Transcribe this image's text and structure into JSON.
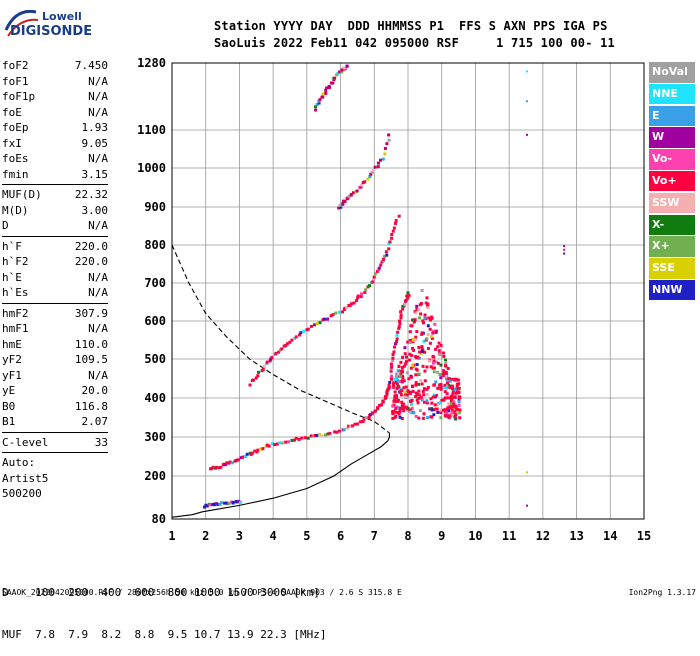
{
  "logo": {
    "top": "Lowell",
    "bottom": "DIGISONDE"
  },
  "header": {
    "line1": "Station YYYY DAY  DDD HHMMSS P1  FFS S AXN PPS IGA PS",
    "line2": "SaoLuis 2022 Feb11 042 095000 RSF     1 715 100 00- 11"
  },
  "params": {
    "group1": [
      {
        "name": "foF2",
        "value": "7.450"
      },
      {
        "name": "foF1",
        "value": "N/A"
      },
      {
        "name": "foF1p",
        "value": "N/A"
      },
      {
        "name": "foE",
        "value": "N/A"
      },
      {
        "name": "foEp",
        "value": "1.93"
      },
      {
        "name": "fxI",
        "value": "9.05"
      },
      {
        "name": "foEs",
        "value": "N/A"
      },
      {
        "name": "fmin",
        "value": "3.15"
      }
    ],
    "group2": [
      {
        "name": "MUF(D)",
        "value": "22.32"
      },
      {
        "name": "M(D)",
        "value": "3.00"
      },
      {
        "name": "D",
        "value": "N/A"
      }
    ],
    "group3": [
      {
        "name": "h`F",
        "value": "220.0"
      },
      {
        "name": "h`F2",
        "value": "220.0"
      },
      {
        "name": "h`E",
        "value": "N/A"
      },
      {
        "name": "h`Es",
        "value": "N/A"
      }
    ],
    "group4": [
      {
        "name": "hmF2",
        "value": "307.9"
      },
      {
        "name": "hmF1",
        "value": "N/A"
      },
      {
        "name": "hmE",
        "value": "110.0"
      },
      {
        "name": "yF2",
        "value": "109.5"
      },
      {
        "name": "yF1",
        "value": "N/A"
      },
      {
        "name": "yE",
        "value": "20.0"
      },
      {
        "name": "B0",
        "value": "116.8"
      },
      {
        "name": "B1",
        "value": "2.07"
      }
    ],
    "group5": [
      {
        "name": "C-level",
        "value": "33"
      }
    ],
    "auto": [
      "Auto:",
      "Artist5",
      "500200"
    ]
  },
  "legend": [
    {
      "label": "NoVal",
      "color": "#a0a0a0"
    },
    {
      "label": "NNE",
      "color": "#1ee4ff"
    },
    {
      "label": "E",
      "color": "#3aa0e8"
    },
    {
      "label": "W",
      "color": "#a000a0"
    },
    {
      "label": "Vo-",
      "color": "#ff40b0"
    },
    {
      "label": "Vo+",
      "color": "#ff0040"
    },
    {
      "label": "SSW",
      "color": "#f4b0b0"
    },
    {
      "label": "X-",
      "color": "#107c10"
    },
    {
      "label": "X+",
      "color": "#70b050"
    },
    {
      "label": "SSE",
      "color": "#d8d000"
    },
    {
      "label": "NNW",
      "color": "#2020c8"
    }
  ],
  "freq_table": {
    "row1": "D    100  200  400  600  800 1000 1500 3000 [km]",
    "row2": "MUF  7.8  7.9  8.2  8.8  9.5 10.7 13.9 22.3 [MHz]"
  },
  "footer": {
    "left": "SAAOK_2022042095000.RSF / 280fx256h 50 kHz 5.0 km / DPS-4 SAA0K 903 / 2.6 S 315.8 E",
    "right": "Ion2Png 1.3.17"
  },
  "chart_data": {
    "type": "scatter",
    "title": "",
    "xlabel": "",
    "ylabel": "",
    "xlim": [
      1,
      15
    ],
    "ylim": [
      80,
      1280
    ],
    "x_ticks": [
      1,
      2,
      3,
      4,
      5,
      6,
      7,
      8,
      9,
      10,
      11,
      12,
      13,
      14,
      15
    ],
    "y_ticks": [
      80,
      200,
      300,
      400,
      500,
      600,
      700,
      800,
      900,
      1000,
      1100,
      1280
    ],
    "grid": true,
    "series": [
      {
        "name": "profile",
        "style": "solid-line",
        "x": [
          1.0,
          1.6,
          1.9,
          2.2,
          3.0,
          4.0,
          5.0,
          5.8,
          6.3,
          6.8,
          7.2,
          7.4,
          7.45,
          7.45
        ],
        "y": [
          85,
          92,
          100,
          105,
          118,
          138,
          165,
          200,
          230,
          255,
          275,
          290,
          300,
          310
        ]
      },
      {
        "name": "profile-extrapolation",
        "style": "dashed-line",
        "x": [
          1.0,
          1.5,
          2.0,
          2.6,
          3.3,
          4.0,
          4.8,
          5.6,
          6.4,
          7.0,
          7.45
        ],
        "y": [
          800,
          700,
          620,
          560,
          500,
          460,
          420,
          390,
          360,
          340,
          310
        ]
      },
      {
        "name": "F2 O-trace",
        "color": "#ff0040",
        "x": [
          2.1,
          2.4,
          2.7,
          3.0,
          3.3,
          3.6,
          4.0,
          4.5,
          5.0,
          5.5,
          6.0,
          6.4,
          6.8,
          7.0,
          7.2,
          7.3,
          7.4,
          7.45
        ],
        "y": [
          222,
          228,
          238,
          250,
          262,
          275,
          287,
          296,
          303,
          310,
          322,
          337,
          355,
          372,
          392,
          410,
          430,
          455
        ]
      },
      {
        "name": "F2 O-trace upper",
        "color": "#ff0040",
        "x": [
          7.45,
          7.5,
          7.6,
          7.7,
          7.8,
          7.9,
          8.0
        ],
        "y": [
          455,
          500,
          550,
          600,
          640,
          660,
          680
        ]
      },
      {
        "name": "multi-hop trace",
        "color": "#ff0040",
        "x": [
          3.3,
          3.6,
          3.9,
          4.2,
          4.6,
          5.0,
          5.5,
          6.0,
          6.3,
          6.6,
          6.9,
          7.1,
          7.3,
          7.5,
          7.7
        ],
        "y": [
          440,
          475,
          505,
          530,
          560,
          585,
          608,
          630,
          650,
          675,
          710,
          745,
          780,
          830,
          890
        ]
      },
      {
        "name": "second multi-hop",
        "color": "#c80060",
        "x": [
          5.9,
          6.1,
          6.3,
          6.6,
          6.9,
          7.2,
          7.45
        ],
        "y": [
          900,
          920,
          935,
          960,
          990,
          1030,
          1100
        ]
      },
      {
        "name": "high-order fragments",
        "color": "#c80060",
        "x": [
          5.2,
          5.4,
          5.6,
          5.8,
          6.0,
          6.2
        ],
        "y": [
          1160,
          1190,
          1220,
          1245,
          1265,
          1280
        ]
      },
      {
        "name": "spread-F cloud",
        "color": "#ff0040",
        "x": [
          7.5,
          9.5
        ],
        "y": [
          350,
          700
        ]
      },
      {
        "name": "E-region echoes",
        "color": "#2020c8",
        "x": [
          1.9,
          2.2,
          2.5,
          2.8,
          3.0
        ],
        "y": [
          120,
          125,
          128,
          130,
          132
        ]
      }
    ]
  }
}
